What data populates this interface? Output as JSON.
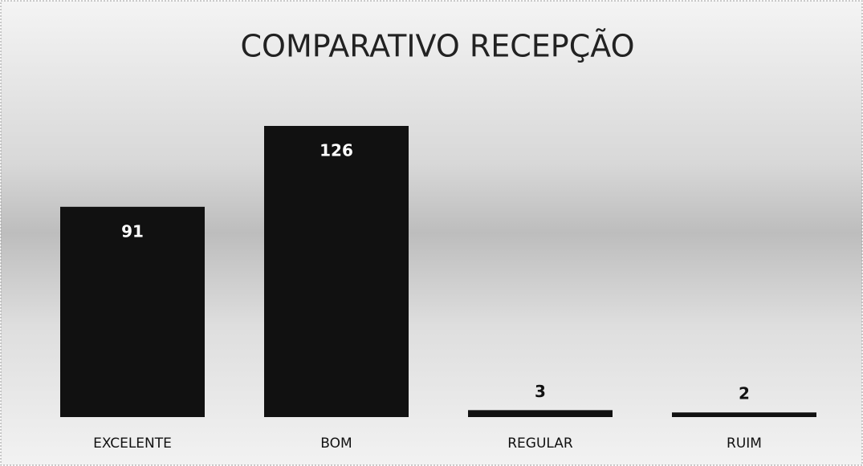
{
  "chart_data": {
    "type": "bar",
    "title": "COMPARATIVO RECEPÇÃO",
    "categories": [
      "EXCELENTE",
      "BOM",
      "REGULAR",
      "RUIM"
    ],
    "values": [
      91,
      126,
      3,
      2
    ],
    "color": "#111111"
  }
}
